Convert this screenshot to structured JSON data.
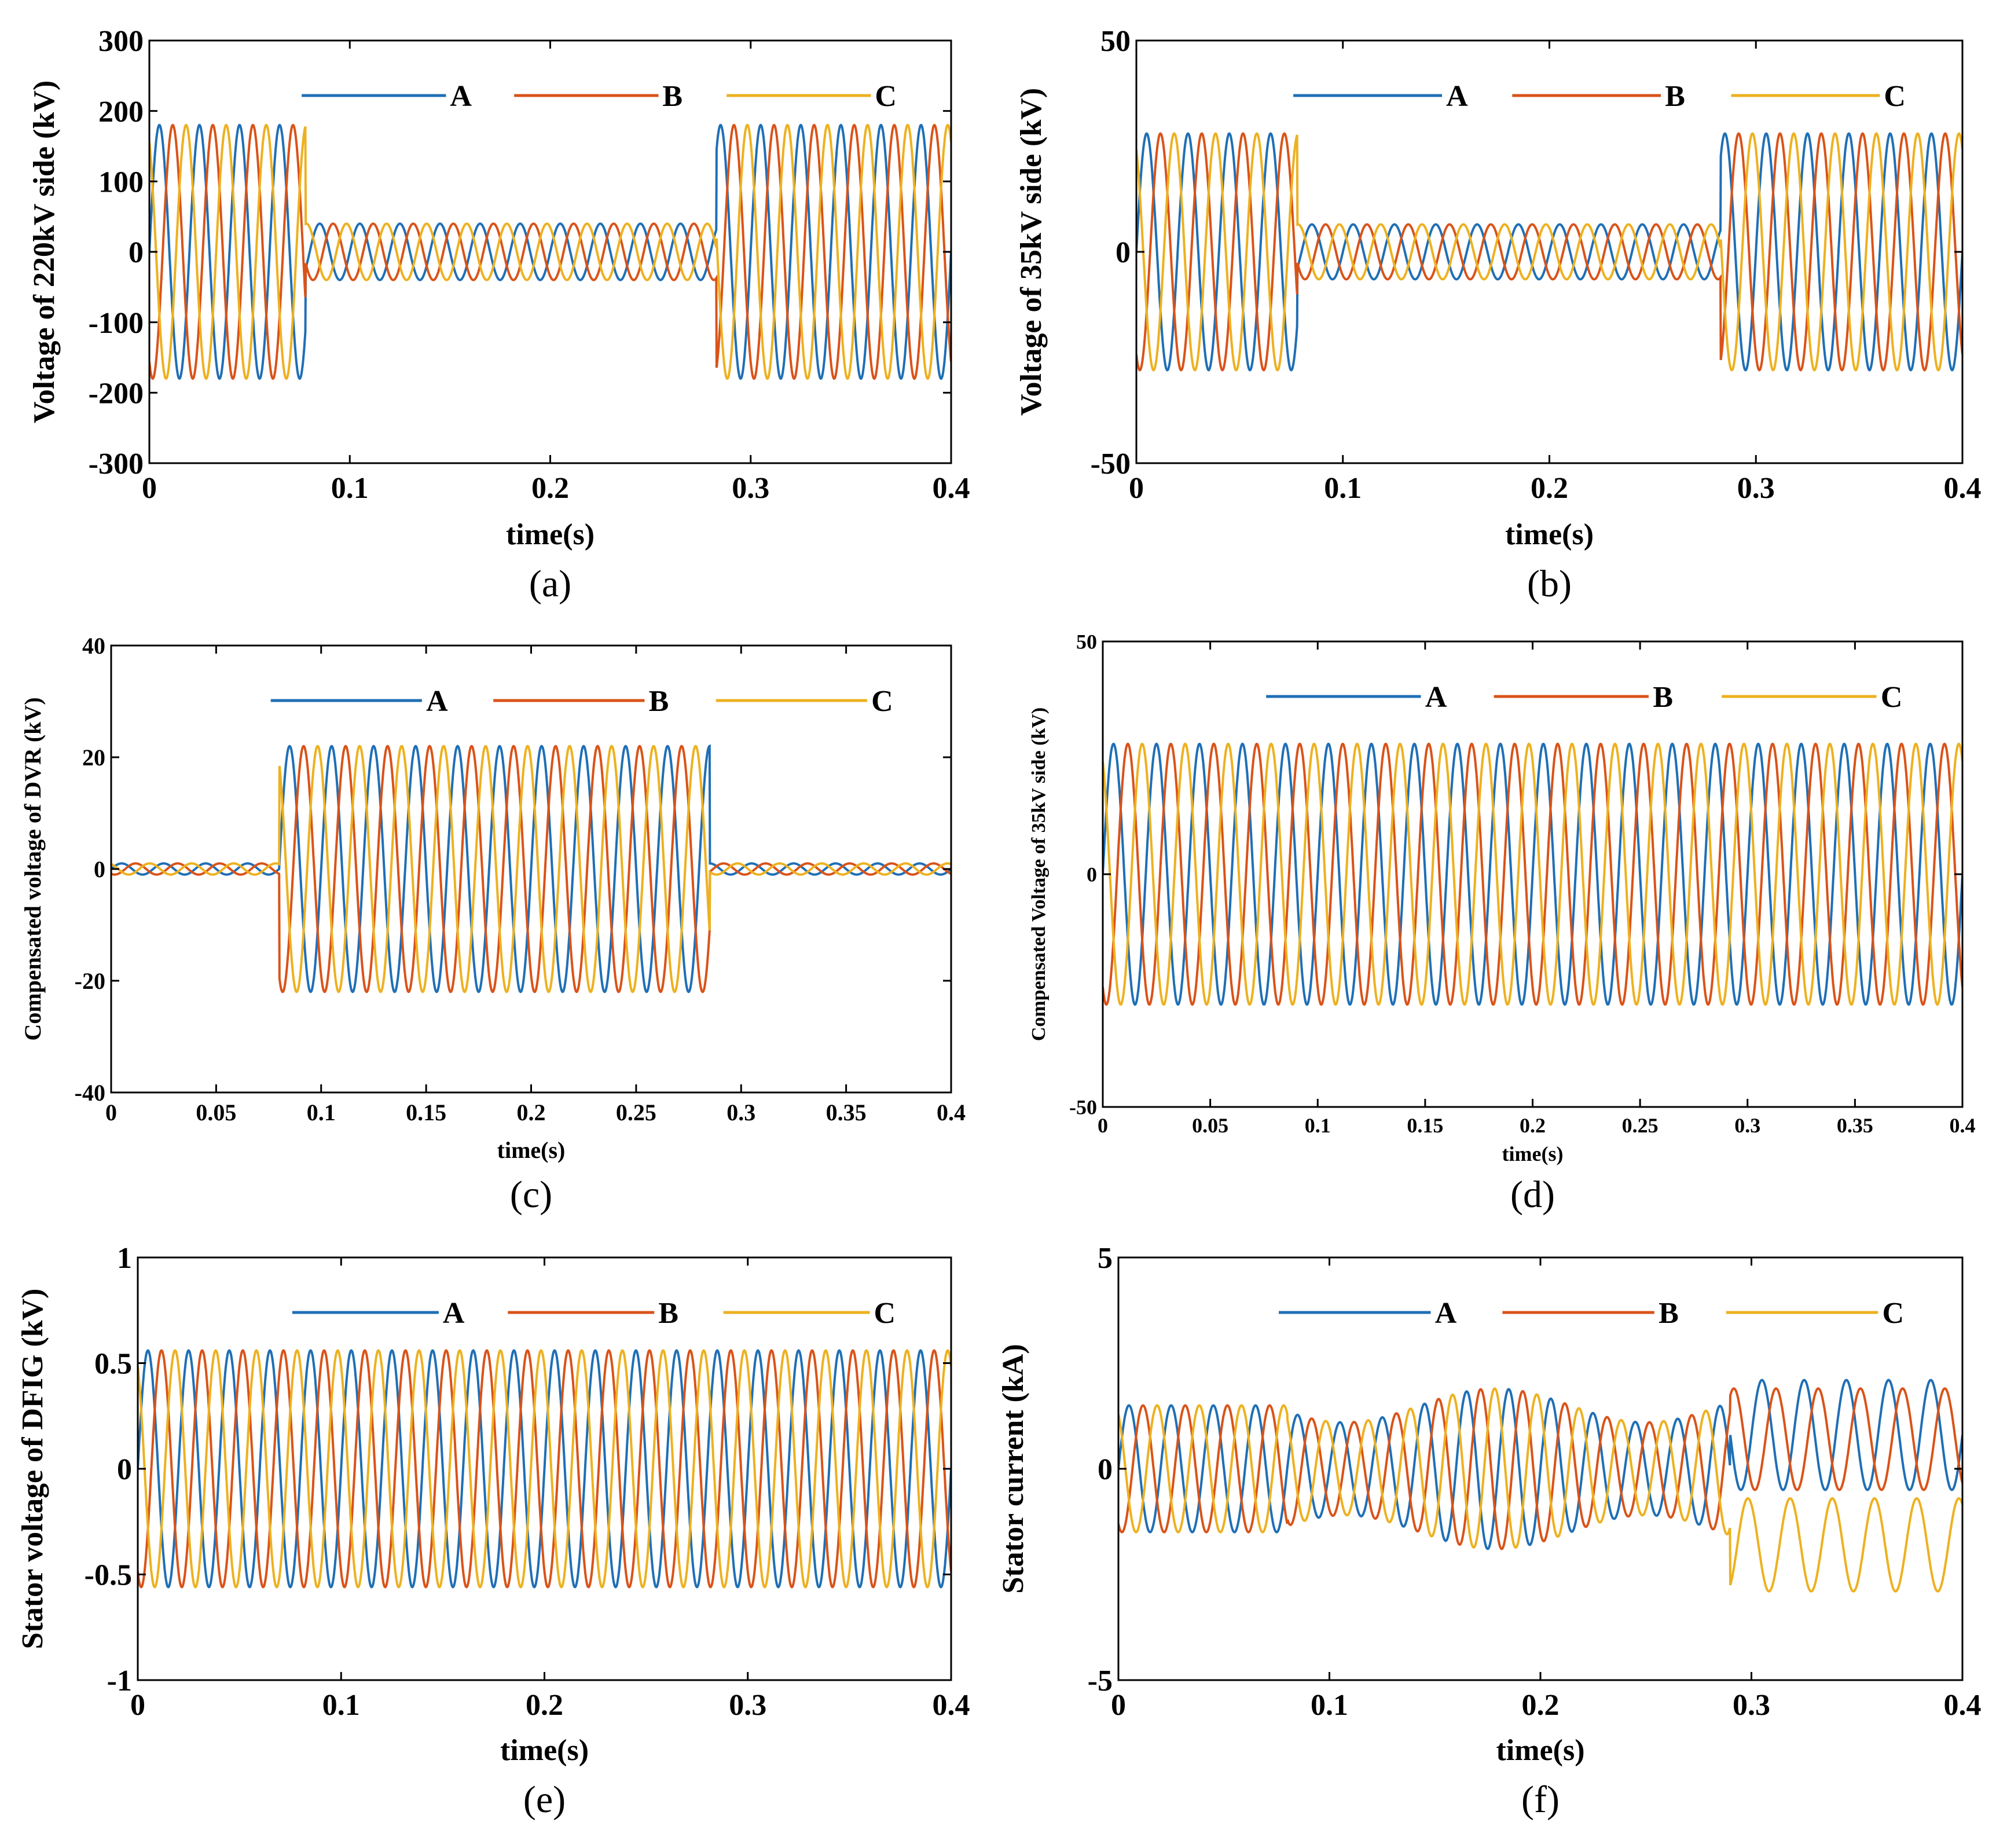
{
  "figure": {
    "colors": {
      "A": "#1F6FB5",
      "B": "#D95319",
      "C": "#EDB120"
    },
    "line_style": "sinusoidal three-phase waveforms, 50 Hz"
  },
  "chart_data": [
    {
      "panel": "(a)",
      "type": "line",
      "ylabel": "Voltage of 220kV side (kV)",
      "xlabel": "time(s)",
      "xlim": [
        0,
        0.4
      ],
      "ylim": [
        -300,
        300
      ],
      "xticks": [
        "0",
        "0.1",
        "0.2",
        "0.3",
        "0.4"
      ],
      "yticks": [
        "300",
        "200",
        "100",
        "0",
        "-100",
        "-200",
        "-300"
      ],
      "legend": [
        "A",
        "B",
        "C"
      ],
      "series": [
        {
          "name": "A",
          "phase_deg": 0
        },
        {
          "name": "B",
          "phase_deg": -120
        },
        {
          "name": "C",
          "phase_deg": 120
        }
      ],
      "segments": [
        [
          0,
          0.078,
          180
        ],
        [
          0.078,
          0.283,
          40
        ],
        [
          0.283,
          0.4,
          180
        ]
      ],
      "annotations": "fault (voltage sag) from 0.08 s to 0.28 s"
    },
    {
      "panel": "(b)",
      "type": "line",
      "ylabel": "Voltage of 35kV side (kV)",
      "xlabel": "time(s)",
      "xlim": [
        0,
        0.4
      ],
      "ylim": [
        -50,
        50
      ],
      "xticks": [
        "0",
        "0.1",
        "0.2",
        "0.3",
        "0.4"
      ],
      "yticks": [
        "50",
        "0",
        "-50"
      ],
      "legend": [
        "A",
        "B",
        "C"
      ],
      "series": [
        {
          "name": "A",
          "phase_deg": 0
        },
        {
          "name": "B",
          "phase_deg": -120
        },
        {
          "name": "C",
          "phase_deg": 120
        }
      ],
      "segments": [
        [
          0,
          0.078,
          28
        ],
        [
          0.078,
          0.283,
          6.5
        ],
        [
          0.283,
          0.4,
          28
        ]
      ]
    },
    {
      "panel": "(c)",
      "type": "line",
      "ylabel": "Compensated voltage of DVR (kV)",
      "xlabel": "time(s)",
      "xlim": [
        0,
        0.4
      ],
      "ylim": [
        -40,
        40
      ],
      "xticks": [
        "0",
        "0.05",
        "0.1",
        "0.15",
        "0.2",
        "0.25",
        "0.3",
        "0.35",
        "0.4"
      ],
      "yticks": [
        "40",
        "20",
        "0",
        "-20",
        "-40"
      ],
      "legend": [
        "A",
        "B",
        "C"
      ],
      "series": [
        {
          "name": "A",
          "phase_deg": 0
        },
        {
          "name": "B",
          "phase_deg": -120
        },
        {
          "name": "C",
          "phase_deg": 120
        }
      ],
      "segments": [
        [
          0,
          0.08,
          1
        ],
        [
          0.08,
          0.285,
          22
        ],
        [
          0.285,
          0.4,
          1
        ]
      ]
    },
    {
      "panel": "(d)",
      "type": "line",
      "ylabel": "Compensated Voltage of 35kV side (kV)",
      "xlabel": "time(s)",
      "xlim": [
        0,
        0.4
      ],
      "ylim": [
        -50,
        50
      ],
      "xticks": [
        "0",
        "0.05",
        "0.1",
        "0.15",
        "0.2",
        "0.25",
        "0.3",
        "0.35",
        "0.4"
      ],
      "yticks": [
        "50",
        "0",
        "-50"
      ],
      "legend": [
        "A",
        "B",
        "C"
      ],
      "series": [
        {
          "name": "A",
          "phase_deg": 0
        },
        {
          "name": "B",
          "phase_deg": -120
        },
        {
          "name": "C",
          "phase_deg": 120
        }
      ],
      "segments": [
        [
          0,
          0.4,
          28
        ]
      ]
    },
    {
      "panel": "(e)",
      "type": "line",
      "ylabel": "Stator voltage of DFIG (kV)",
      "xlabel": "time(s)",
      "xlim": [
        0,
        0.4
      ],
      "ylim": [
        -1,
        1
      ],
      "xticks": [
        "0",
        "0.1",
        "0.2",
        "0.3",
        "0.4"
      ],
      "yticks": [
        "1",
        "0.5",
        "0",
        "-0.5",
        "-1"
      ],
      "legend": [
        "A",
        "B",
        "C"
      ],
      "series": [
        {
          "name": "A",
          "phase_deg": 0
        },
        {
          "name": "B",
          "phase_deg": -120
        },
        {
          "name": "C",
          "phase_deg": 120
        }
      ],
      "segments": [
        [
          0,
          0.4,
          0.56
        ]
      ]
    },
    {
      "panel": "(f)",
      "type": "line",
      "ylabel": "Stator current (kA)",
      "xlabel": "time(s)",
      "xlim": [
        0,
        0.4
      ],
      "ylim": [
        -5,
        5
      ],
      "xticks": [
        "0",
        "0.1",
        "0.2",
        "0.3",
        "0.4"
      ],
      "yticks": [
        "5",
        "0",
        "-5"
      ],
      "legend": [
        "A",
        "B",
        "C"
      ],
      "series": [
        {
          "name": "A",
          "phase_deg": 0
        },
        {
          "name": "B",
          "phase_deg": -120
        },
        {
          "name": "C",
          "phase_deg": 120
        }
      ],
      "segments": [
        [
          0,
          0.08,
          1.5
        ],
        [
          0.08,
          0.29,
          1.5
        ],
        [
          0.29,
          0.4,
          1.8
        ]
      ],
      "annotations": "after 0.3 s phase C offset to about -1.8 kA"
    }
  ]
}
